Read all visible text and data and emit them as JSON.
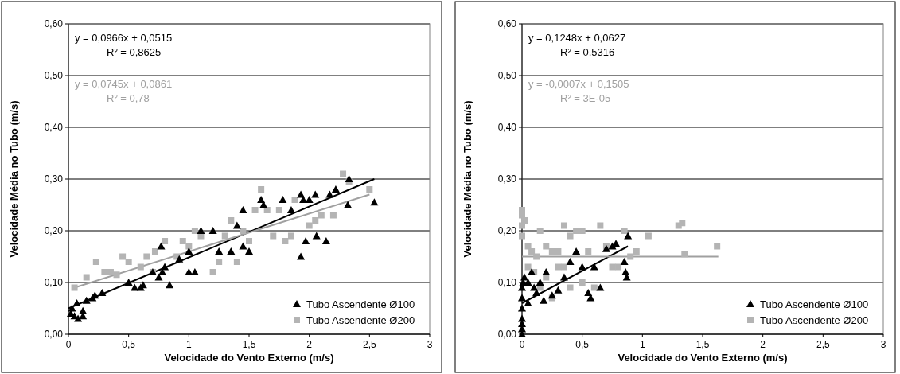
{
  "chart_data": [
    {
      "type": "scatter",
      "xlabel": "Velocidade do Vento Externo (m/s)",
      "ylabel": "Velocidade Média no Tubo (m/s)",
      "annotations": [
        "y = 0,0966x + 0,0515",
        "R² = 0,8625",
        "y = 0,0745x + 0,0861",
        "R² = 0,78"
      ],
      "xlim": [
        0,
        3
      ],
      "ylim": [
        0,
        0.6
      ],
      "xticks": [
        0,
        {
          "value": 0.5,
          "label": "0,5"
        },
        1,
        {
          "value": 1.5,
          "label": "1,5"
        },
        2,
        {
          "value": 2.5,
          "label": "2,5"
        },
        3
      ],
      "yticks": [
        {
          "value": 0,
          "label": "0,00"
        },
        {
          "value": 0.1,
          "label": "0,10"
        },
        {
          "value": 0.2,
          "label": "0,20"
        },
        {
          "value": 0.3,
          "label": "0,30"
        },
        {
          "value": 0.4,
          "label": "0,40"
        },
        {
          "value": 0.5,
          "label": "0,50"
        },
        {
          "value": 0.6,
          "label": "0,60"
        }
      ],
      "grid": "y",
      "legend": "bottom right",
      "series": [
        {
          "name": "Tubo Ascendente Ø100",
          "color": "#000000",
          "marker": "triangle",
          "x": [
            0.02,
            0.05,
            0.08,
            0.12,
            0.12,
            0.03,
            0.07,
            0.15,
            0.2,
            0.22,
            0.28,
            0.5,
            0.55,
            0.6,
            0.62,
            0.7,
            0.75,
            0.78,
            0.77,
            0.8,
            0.84,
            0.92,
            1.0,
            1.05,
            1.0,
            1.1,
            1.2,
            1.25,
            1.35,
            1.4,
            1.45,
            1.5,
            1.45,
            1.6,
            1.62,
            1.78,
            1.85,
            1.93,
            1.95,
            1.93,
            1.97,
            2.0,
            2.05,
            2.06,
            2.14,
            2.17,
            2.22,
            2.32,
            2.33,
            2.54
          ],
          "values": [
            0.04,
            0.035,
            0.03,
            0.035,
            0.045,
            0.05,
            0.06,
            0.065,
            0.07,
            0.075,
            0.08,
            0.1,
            0.09,
            0.09,
            0.095,
            0.12,
            0.11,
            0.12,
            0.17,
            0.13,
            0.095,
            0.145,
            0.12,
            0.12,
            0.16,
            0.2,
            0.2,
            0.16,
            0.16,
            0.21,
            0.17,
            0.16,
            0.24,
            0.26,
            0.25,
            0.26,
            0.24,
            0.27,
            0.26,
            0.15,
            0.18,
            0.26,
            0.27,
            0.19,
            0.18,
            0.27,
            0.28,
            0.25,
            0.3,
            0.255
          ]
        },
        {
          "name": "Tubo Ascendente Ø200",
          "color": "#b4b4b4",
          "marker": "square",
          "x": [
            0.05,
            0.15,
            0.23,
            0.3,
            0.35,
            0.4,
            0.45,
            0.5,
            0.6,
            0.65,
            0.72,
            0.8,
            0.9,
            0.95,
            1.05,
            1.1,
            1.2,
            1.25,
            1.3,
            1.4,
            1.35,
            1.5,
            1.55,
            1.6,
            1.65,
            1.7,
            1.75,
            1.8,
            1.85,
            1.88,
            2.0,
            2.05,
            2.1,
            2.2,
            2.28,
            2.33,
            2.5,
            1.45,
            0.7,
            1.0
          ],
          "values": [
            0.09,
            0.11,
            0.14,
            0.12,
            0.12,
            0.115,
            0.15,
            0.14,
            0.13,
            0.15,
            0.16,
            0.18,
            0.15,
            0.18,
            0.2,
            0.19,
            0.12,
            0.14,
            0.19,
            0.14,
            0.22,
            0.18,
            0.24,
            0.28,
            0.24,
            0.19,
            0.24,
            0.18,
            0.19,
            0.26,
            0.21,
            0.22,
            0.23,
            0.23,
            0.31,
            0.295,
            0.28,
            0.2,
            0.12,
            0.17
          ]
        },
        {
          "type": "line",
          "color": "#000000",
          "x": [
            0,
            2.54
          ],
          "values": [
            0.05,
            0.3
          ]
        },
        {
          "type": "line",
          "color": "#a0a0a0",
          "x": [
            0.05,
            2.5
          ],
          "values": [
            0.09,
            0.27
          ]
        }
      ]
    },
    {
      "type": "scatter",
      "xlabel": "Velocidade do Vento Externo (m/s)",
      "ylabel": "Velocidade Média no Tubo (m/s)",
      "annotations": [
        "y = 0,1248x + 0,0627",
        "R² = 0,5316",
        "y = -0,0007x + 0,1505",
        "R² = 3E-05"
      ],
      "xlim": [
        0,
        3
      ],
      "ylim": [
        0,
        0.6
      ],
      "xticks": [
        0,
        {
          "value": 0.5,
          "label": "0,5"
        },
        1,
        {
          "value": 1.5,
          "label": "1,5"
        },
        2,
        {
          "value": 2.5,
          "label": "2,5"
        },
        3
      ],
      "yticks": [
        {
          "value": 0,
          "label": "0,00"
        },
        {
          "value": 0.1,
          "label": "0,10"
        },
        {
          "value": 0.2,
          "label": "0,20"
        },
        {
          "value": 0.3,
          "label": "0,30"
        },
        {
          "value": 0.4,
          "label": "0,40"
        },
        {
          "value": 0.5,
          "label": "0,50"
        },
        {
          "value": 0.6,
          "label": "0,60"
        }
      ],
      "grid": "y",
      "legend": "bottom right",
      "series": [
        {
          "name": "Tubo Ascendente Ø100",
          "color": "#000000",
          "marker": "triangle",
          "x": [
            0,
            0,
            0,
            0,
            0,
            0,
            0,
            0.01,
            0.02,
            0.05,
            0.08,
            0.1,
            0.15,
            0.18,
            0.2,
            0.25,
            0.3,
            0.35,
            0.4,
            0.45,
            0.5,
            0.55,
            0.57,
            0.6,
            0.65,
            0.7,
            0.75,
            0.78,
            0.85,
            0.86,
            0.88,
            0.87,
            0.12,
            0.05
          ],
          "values": [
            0,
            0.01,
            0.02,
            0.03,
            0.05,
            0.07,
            0.09,
            0.1,
            0.11,
            0.1,
            0.12,
            0.09,
            0.1,
            0.065,
            0.12,
            0.075,
            0.085,
            0.11,
            0.14,
            0.16,
            0.13,
            0.08,
            0.07,
            0.13,
            0.09,
            0.165,
            0.17,
            0.175,
            0.14,
            0.12,
            0.19,
            0.11,
            0.08,
            0.06
          ]
        },
        {
          "name": "Tubo Ascendente Ø200",
          "color": "#b4b4b4",
          "marker": "square",
          "x": [
            0,
            0,
            0,
            0.02,
            0,
            0.05,
            0.08,
            0.12,
            0.15,
            0.2,
            0.25,
            0.3,
            0.35,
            0.4,
            0.45,
            0.5,
            0.55,
            0.65,
            0.7,
            0.75,
            0.85,
            0.8,
            0.9,
            0.95,
            1.05,
            1.3,
            1.33,
            1.35,
            1.62,
            0.1,
            0.2,
            0.3,
            0.4,
            0.5,
            0.6,
            0.25,
            0.15,
            0.05,
            0.35
          ],
          "values": [
            0.24,
            0.23,
            0.21,
            0.22,
            0.19,
            0.17,
            0.16,
            0.15,
            0.2,
            0.17,
            0.16,
            0.16,
            0.21,
            0.19,
            0.2,
            0.2,
            0.16,
            0.21,
            0.17,
            0.13,
            0.2,
            0.13,
            0.15,
            0.16,
            0.19,
            0.21,
            0.215,
            0.155,
            0.17,
            0.12,
            0.11,
            0.13,
            0.09,
            0.1,
            0.09,
            0.07,
            0.09,
            0.13,
            0.13
          ]
        },
        {
          "type": "line",
          "color": "#000000",
          "x": [
            0,
            0.88
          ],
          "values": [
            0.06,
            0.17
          ]
        },
        {
          "type": "line",
          "color": "#a0a0a0",
          "x": [
            0,
            1.63
          ],
          "values": [
            0.15,
            0.15
          ]
        }
      ]
    }
  ]
}
